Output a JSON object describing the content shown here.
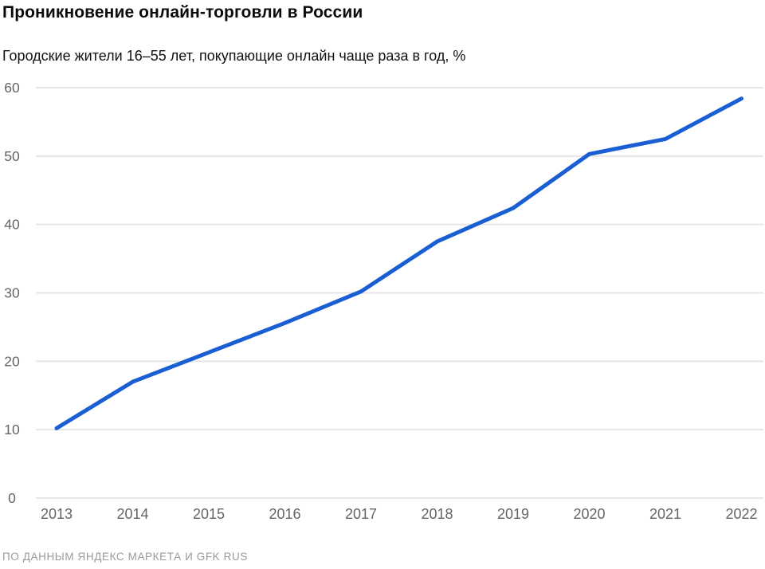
{
  "page": {
    "title": "Проникновение онлайн-торговли в России",
    "subtitle": "Городские жители 16–55 лет, покупающие онлайн чаще раза в год, %",
    "source": "ПО ДАННЫМ ЯНДЕКС МАРКЕТА И GFK RUS"
  },
  "chart_data": {
    "type": "line",
    "title": "Проникновение онлайн-торговли в России",
    "subtitle": "Городские жители 16–55 лет, покупающие онлайн чаще раза в год, %",
    "x": [
      "2013",
      "2014",
      "2015",
      "2016",
      "2017",
      "2018",
      "2019",
      "2020",
      "2021",
      "2022"
    ],
    "values": [
      10.2,
      17,
      21.3,
      25.6,
      30.2,
      37.5,
      42.4,
      50.3,
      52.5,
      58.4
    ],
    "xlabel": "",
    "ylabel": "%",
    "ylim": [
      0,
      60
    ],
    "yticks": [
      0,
      10,
      20,
      30,
      40,
      50,
      60
    ],
    "grid": "horizontal",
    "legend": "none",
    "line_color": "#1a5ed3",
    "grid_color": "#e6e6e6",
    "tick_label_color": "#646464",
    "source": "ПО ДАННЫМ ЯНДЕКС МАРКЕТА И GFK RUS"
  }
}
